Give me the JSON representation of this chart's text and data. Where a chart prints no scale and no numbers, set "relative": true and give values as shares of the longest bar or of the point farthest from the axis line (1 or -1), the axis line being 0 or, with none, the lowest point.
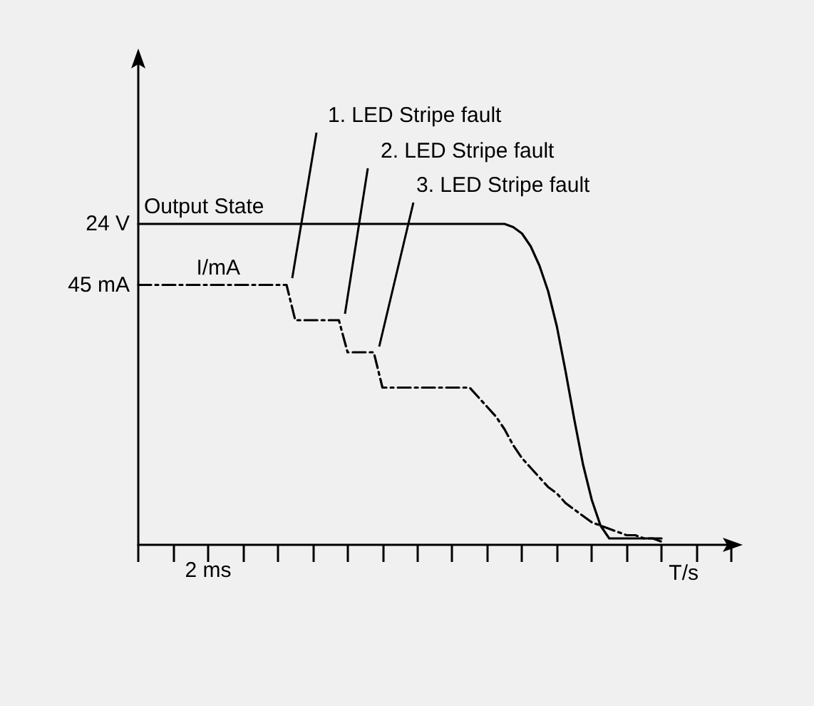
{
  "chart_data": {
    "type": "line",
    "relative": true,
    "xlabel": "T/s",
    "marker": "none",
    "categories": [
      null,
      null,
      null,
      null,
      null,
      null,
      null,
      null,
      null,
      null,
      null,
      null,
      null,
      null,
      null,
      null,
      null,
      null,
      null,
      null,
      null,
      null,
      null,
      null,
      null,
      null,
      null,
      null,
      null,
      null,
      null,
      null,
      null,
      null,
      null,
      null,
      null,
      null,
      null,
      null,
      null,
      null,
      null,
      null,
      null,
      null,
      null,
      null,
      null,
      null,
      null,
      null,
      null,
      null,
      null,
      null,
      null,
      null,
      null,
      null,
      null,
      null,
      null,
      null,
      null,
      null,
      null,
      null,
      null
    ],
    "series": [
      {
        "name": "Output State",
        "color": "#000000",
        "line_style": "solid",
        "values": [
          1,
          1,
          1,
          1,
          1,
          1,
          1,
          1,
          1,
          1,
          1,
          1,
          1,
          1,
          1,
          1,
          1,
          1,
          1,
          1,
          1,
          1,
          1,
          1,
          1,
          1,
          1,
          1,
          1,
          1,
          1,
          1,
          1,
          1,
          1,
          1,
          1,
          1,
          1,
          1,
          1,
          1,
          1,
          0.99,
          0.97,
          0.93,
          0.87,
          0.79,
          0.68,
          0.54,
          0.39,
          0.25,
          0.14,
          0.06,
          0.02,
          0.02,
          0.02,
          0.02,
          0.02,
          0.02,
          0.02,
          null,
          null,
          null,
          null,
          null,
          null,
          null,
          null
        ]
      },
      {
        "name": "I/mA",
        "color": "#000000",
        "line_style": "dashed",
        "values": [
          0.81,
          0.81,
          0.81,
          0.81,
          0.81,
          0.81,
          0.81,
          0.81,
          0.81,
          0.81,
          0.81,
          0.81,
          0.81,
          0.81,
          0.81,
          0.81,
          0.81,
          0.81,
          0.7,
          0.7,
          0.7,
          0.7,
          0.7,
          0.7,
          0.6,
          0.6,
          0.6,
          0.6,
          0.49,
          0.49,
          0.49,
          0.49,
          0.49,
          0.49,
          0.49,
          0.49,
          0.49,
          0.49,
          0.49,
          0.46,
          0.43,
          0.4,
          0.36,
          0.31,
          0.27,
          0.24,
          0.21,
          0.18,
          0.16,
          0.13,
          0.11,
          0.09,
          0.07,
          0.06,
          0.05,
          0.04,
          0.03,
          0.03,
          0.02,
          0.02,
          0.01,
          null,
          null,
          null,
          null,
          null,
          null,
          null,
          null
        ]
      }
    ],
    "annotations": [
      "2 ms",
      "24 V",
      "45 mA",
      "1. LED Stripe fault",
      "2. LED Stripe fault",
      "3. LED Stripe fault"
    ]
  }
}
